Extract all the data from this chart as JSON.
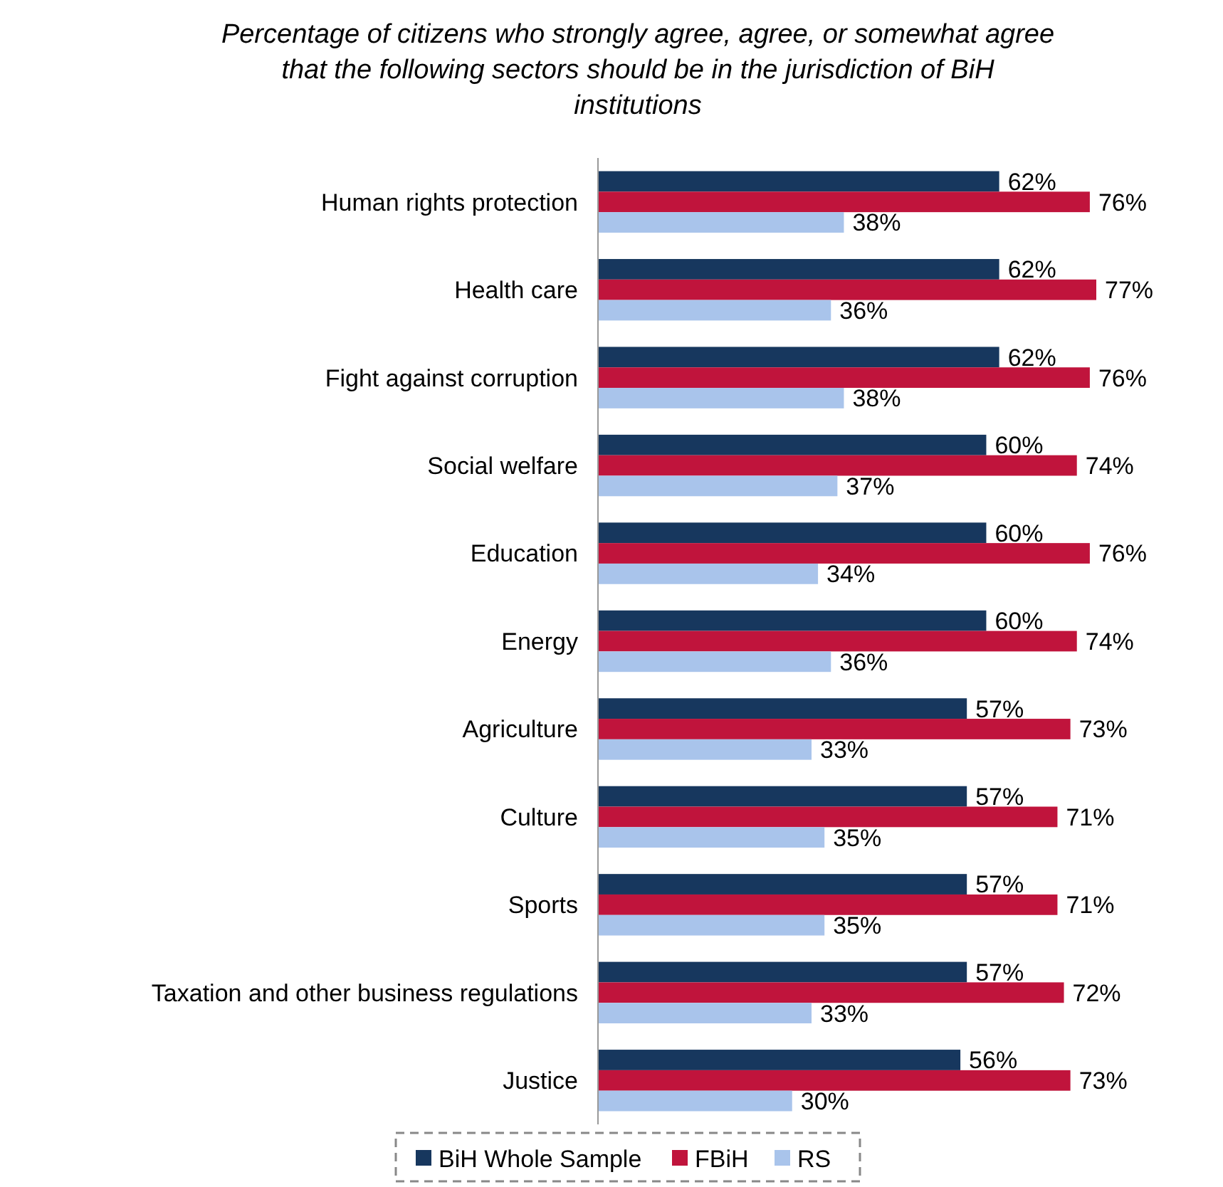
{
  "chart_data": {
    "type": "bar",
    "orientation": "horizontal",
    "title": "Percentage of citizens who strongly agree, agree, or somewhat agree that the following sectors should be in the jurisdiction of BiH institutions",
    "categories": [
      "Human rights protection",
      "Health care",
      "Fight against corruption",
      "Social welfare",
      "Education",
      "Energy",
      "Agriculture",
      "Culture",
      "Sports",
      "Taxation and other business regulations",
      "Justice"
    ],
    "series": [
      {
        "name": "BiH Whole Sample",
        "color": "#17375e",
        "values": [
          62,
          62,
          62,
          60,
          60,
          60,
          57,
          57,
          57,
          57,
          56
        ],
        "value_labels": [
          "62%",
          "62%",
          "62%",
          "60%",
          "60%",
          "60%",
          "57%",
          "57%",
          "57%",
          "57%",
          "56%"
        ]
      },
      {
        "name": "FBiH",
        "color": "#c0143c",
        "values": [
          76,
          77,
          76,
          74,
          76,
          74,
          73,
          71,
          71,
          72,
          73
        ],
        "value_labels": [
          "76%",
          "77%",
          "76%",
          "74%",
          "76%",
          "74%",
          "73%",
          "71%",
          "71%",
          "72%",
          "73%"
        ]
      },
      {
        "name": "RS",
        "color": "#a9c4eb",
        "values": [
          38,
          36,
          38,
          37,
          34,
          36,
          33,
          35,
          35,
          33,
          30
        ],
        "value_labels": [
          "38%",
          "36%",
          "38%",
          "37%",
          "34%",
          "36%",
          "33%",
          "35%",
          "35%",
          "33%",
          "30%"
        ]
      }
    ],
    "legend": "bottom",
    "grid": false,
    "tick_labels": "y"
  }
}
